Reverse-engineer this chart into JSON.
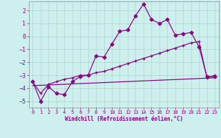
{
  "xlabel": "Windchill (Refroidissement éolien,°C)",
  "bg_color": "#cdf0ee",
  "line_color": "#880088",
  "xlim": [
    -0.5,
    23.5
  ],
  "ylim": [
    -5.5,
    2.7
  ],
  "yticks": [
    -5,
    -4,
    -3,
    -2,
    -1,
    0,
    1,
    2
  ],
  "xticks": [
    0,
    1,
    2,
    3,
    4,
    5,
    6,
    7,
    8,
    9,
    10,
    11,
    12,
    13,
    14,
    15,
    16,
    17,
    18,
    19,
    20,
    21,
    22,
    23
  ],
  "series1_x": [
    0,
    1,
    2,
    3,
    4,
    5,
    6,
    7,
    8,
    9,
    10,
    11,
    12,
    13,
    14,
    15,
    16,
    17,
    18,
    19,
    20,
    21,
    22,
    23
  ],
  "series1_y": [
    -3.5,
    -5.0,
    -3.9,
    -4.4,
    -4.5,
    -3.5,
    -3.1,
    -3.0,
    -1.5,
    -1.6,
    -0.6,
    0.4,
    0.5,
    1.6,
    2.5,
    1.3,
    1.0,
    1.3,
    0.1,
    0.2,
    0.3,
    -0.8,
    -3.1,
    -3.1
  ],
  "series2_x": [
    0,
    1,
    2,
    3,
    4,
    5,
    6,
    7,
    8,
    9,
    10,
    11,
    12,
    13,
    14,
    15,
    16,
    17,
    18,
    19,
    20,
    21,
    22,
    23
  ],
  "series2_y": [
    -3.5,
    -4.4,
    -3.7,
    -3.5,
    -3.3,
    -3.2,
    -3.0,
    -3.0,
    -2.8,
    -2.7,
    -2.5,
    -2.3,
    -2.1,
    -1.9,
    -1.7,
    -1.5,
    -1.3,
    -1.1,
    -0.9,
    -0.7,
    -0.5,
    -0.4,
    -3.2,
    -3.0
  ],
  "series3_x": [
    0,
    23
  ],
  "series3_y": [
    -3.8,
    -3.2
  ]
}
